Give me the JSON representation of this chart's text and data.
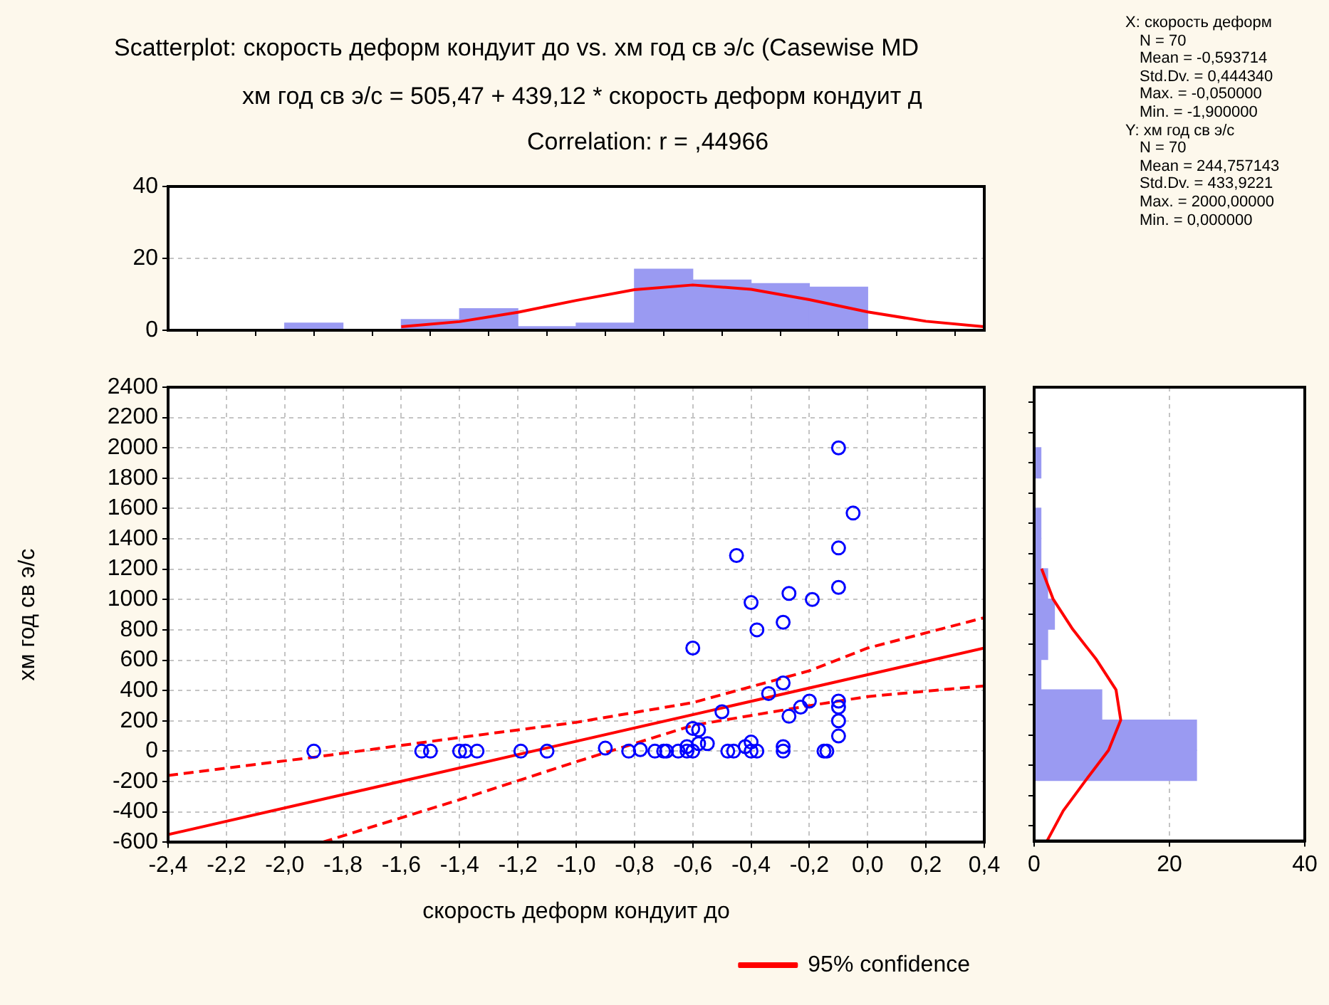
{
  "chart_data": [
    {
      "type": "histogram",
      "title": "Scatterplot: скорость деформ кондуит до vs. хм год св э/с (Casewise MD",
      "subtitle": "хм год св э/с = 505,47 + 439,12 * скорость деформ кондуит д",
      "annotations": [
        "Correlation: r = ,44966",
        "X:  скорость деформ",
        "N = 70",
        "Mean = -0,593714",
        "Std.Dv. = 0,444340",
        "Max. = -0,050000",
        "Min. = -1,900000",
        "Y:  хм год св э/с",
        "N = 70",
        "Mean = 244,757143",
        "Std.Dv. = 433,9221",
        "Max. = 2000,00000",
        "Min. = 0,000000"
      ],
      "bins": [
        -2.0,
        -1.8,
        -1.6,
        -1.4,
        -1.2,
        -1.0,
        -0.8,
        -0.6,
        -0.4,
        -0.2,
        0.0
      ],
      "xlim": [
        -2.4,
        0.4
      ],
      "xticks": [
        {
          "value": -2.4,
          "label": null
        },
        {
          "value": -2.2,
          "label": null
        },
        {
          "value": -2.0,
          "label": null
        },
        {
          "value": -1.8,
          "label": null
        },
        {
          "value": -1.6,
          "label": null
        },
        {
          "value": -1.4,
          "label": null
        },
        {
          "value": -1.2,
          "label": null
        },
        {
          "value": -1.0,
          "label": null
        },
        {
          "value": -0.8,
          "label": null
        },
        {
          "value": -0.6,
          "label": null
        },
        {
          "value": -0.4,
          "label": null
        },
        {
          "value": -0.2,
          "label": null
        },
        {
          "value": 0.0,
          "label": null
        },
        {
          "value": 0.2,
          "label": null
        },
        {
          "value": 0.4,
          "label": null
        }
      ],
      "ylim": [
        0,
        40
      ],
      "yticks": [
        0,
        20,
        40
      ],
      "tick_labels": "y",
      "grid": "y",
      "series": [
        {
          "type": "histogram",
          "color": "#9a9af2",
          "values": [
            2,
            0,
            3,
            6,
            1,
            2,
            17,
            14,
            13,
            12
          ]
        },
        {
          "type": "line",
          "color": "#ff0000",
          "x": [
            -1.6,
            -1.4,
            -1.2,
            -1.0,
            -0.8,
            -0.6,
            -0.4,
            -0.2,
            0.0,
            0.2,
            0.4
          ],
          "values": [
            1.0,
            2.4,
            5.0,
            8.3,
            11.3,
            12.6,
            11.4,
            8.5,
            5.1,
            2.5,
            1.0
          ]
        }
      ]
    },
    {
      "type": "scatter",
      "xlabel": "скорость деформ кондуит до",
      "ylabel": "хм год св э/с",
      "xlim": [
        -2.4,
        0.4
      ],
      "xticks": [
        {
          "value": -2.4,
          "label": "-2,4"
        },
        {
          "value": -2.2,
          "label": "-2,2"
        },
        {
          "value": -2.0,
          "label": "-2,0"
        },
        {
          "value": -1.8,
          "label": "-1,8"
        },
        {
          "value": -1.6,
          "label": "-1,6"
        },
        {
          "value": -1.4,
          "label": "-1,4"
        },
        {
          "value": -1.2,
          "label": "-1,2"
        },
        {
          "value": -1.0,
          "label": "-1,0"
        },
        {
          "value": -0.8,
          "label": "-0,8"
        },
        {
          "value": -0.6,
          "label": "-0,6"
        },
        {
          "value": -0.4,
          "label": "-0,4"
        },
        {
          "value": -0.2,
          "label": "-0,2"
        },
        {
          "value": 0.0,
          "label": "0,0"
        },
        {
          "value": 0.2,
          "label": "0,2"
        },
        {
          "value": 0.4,
          "label": "0,4"
        }
      ],
      "ylim": [
        -600,
        2400
      ],
      "yticks": [
        -600,
        -400,
        -200,
        0,
        200,
        400,
        600,
        800,
        1000,
        1200,
        1400,
        1600,
        1800,
        2000,
        2200,
        2400
      ],
      "grid": true,
      "legend": "bottom right",
      "series": [
        {
          "type": "scatter",
          "color": "#0000ff",
          "marker": "circle",
          "x": [
            -1.9,
            -1.53,
            -1.5,
            -1.4,
            -1.38,
            -1.34,
            -1.19,
            -1.1,
            -0.1,
            -0.05,
            -0.1,
            -0.1,
            -0.45,
            -0.27,
            -0.19,
            -0.4,
            -0.29,
            -0.38,
            -0.6,
            -0.29,
            -0.34,
            -0.5,
            -0.2,
            -0.23,
            -0.27,
            -0.1,
            -0.1,
            -0.1,
            -0.1,
            -0.6,
            -0.58,
            -0.58,
            -0.55,
            -0.62,
            -0.4,
            -0.42,
            -0.29,
            -0.9,
            -0.82,
            -0.78,
            -0.73,
            -0.7,
            -0.69,
            -0.65,
            -0.62,
            -0.6,
            -0.48,
            -0.46,
            -0.4,
            -0.38,
            -0.29,
            -0.15,
            -0.14
          ],
          "values": [
            0,
            0,
            0,
            0,
            0,
            0,
            0,
            0,
            2000,
            1570,
            1340,
            1080,
            1290,
            1040,
            1000,
            980,
            850,
            800,
            680,
            450,
            380,
            260,
            330,
            290,
            230,
            330,
            290,
            200,
            100,
            150,
            140,
            50,
            50,
            30,
            60,
            30,
            30,
            20,
            0,
            10,
            0,
            0,
            0,
            0,
            0,
            0,
            0,
            0,
            0,
            0,
            0,
            0,
            0
          ]
        },
        {
          "type": "line",
          "name": "95% confidence",
          "color": "#ff0000",
          "line_style": "solid",
          "x": [
            -2.4,
            0.4
          ],
          "values": [
            -550,
            680
          ]
        },
        {
          "type": "line",
          "color": "#ff0000",
          "line_style": "dashed",
          "x": [
            -2.4,
            -1.9,
            -1.4,
            -1.0,
            -0.6,
            -0.2,
            0.0,
            0.4
          ],
          "values": [
            -160,
            -40,
            90,
            190,
            320,
            530,
            680,
            880
          ]
        },
        {
          "type": "line",
          "color": "#ff0000",
          "line_style": "dashed",
          "x": [
            -1.87,
            -1.4,
            -1.0,
            -0.6,
            -0.2,
            0.0,
            0.4
          ],
          "values": [
            -600,
            -320,
            -70,
            170,
            300,
            360,
            430
          ]
        }
      ]
    },
    {
      "type": "histogram",
      "orientation": "horizontal",
      "bins": [
        -200,
        0,
        200,
        400,
        600,
        800,
        1000,
        1200,
        1400,
        1600,
        1800,
        2000
      ],
      "ylim": [
        -600,
        2400
      ],
      "yticks": [
        -600,
        -400,
        -200,
        0,
        200,
        400,
        600,
        800,
        1000,
        1200,
        1400,
        1600,
        1800,
        2000,
        2200,
        2400
      ],
      "xlim": [
        0,
        40
      ],
      "xticks": [
        0,
        20,
        40
      ],
      "tick_labels": "x",
      "grid": "x",
      "series": [
        {
          "type": "histogram",
          "color": "#9a9af2",
          "values": [
            24,
            24,
            10,
            1,
            2,
            3,
            2,
            1,
            1,
            0,
            1
          ]
        },
        {
          "type": "line",
          "color": "#ff0000",
          "x": [
            -600,
            -400,
            -200,
            0,
            200,
            400,
            600,
            800,
            1000,
            1200
          ],
          "values": [
            1.9,
            4.3,
            7.6,
            11.0,
            12.8,
            12.1,
            9.2,
            5.7,
            2.8,
            1.1
          ]
        }
      ]
    }
  ]
}
